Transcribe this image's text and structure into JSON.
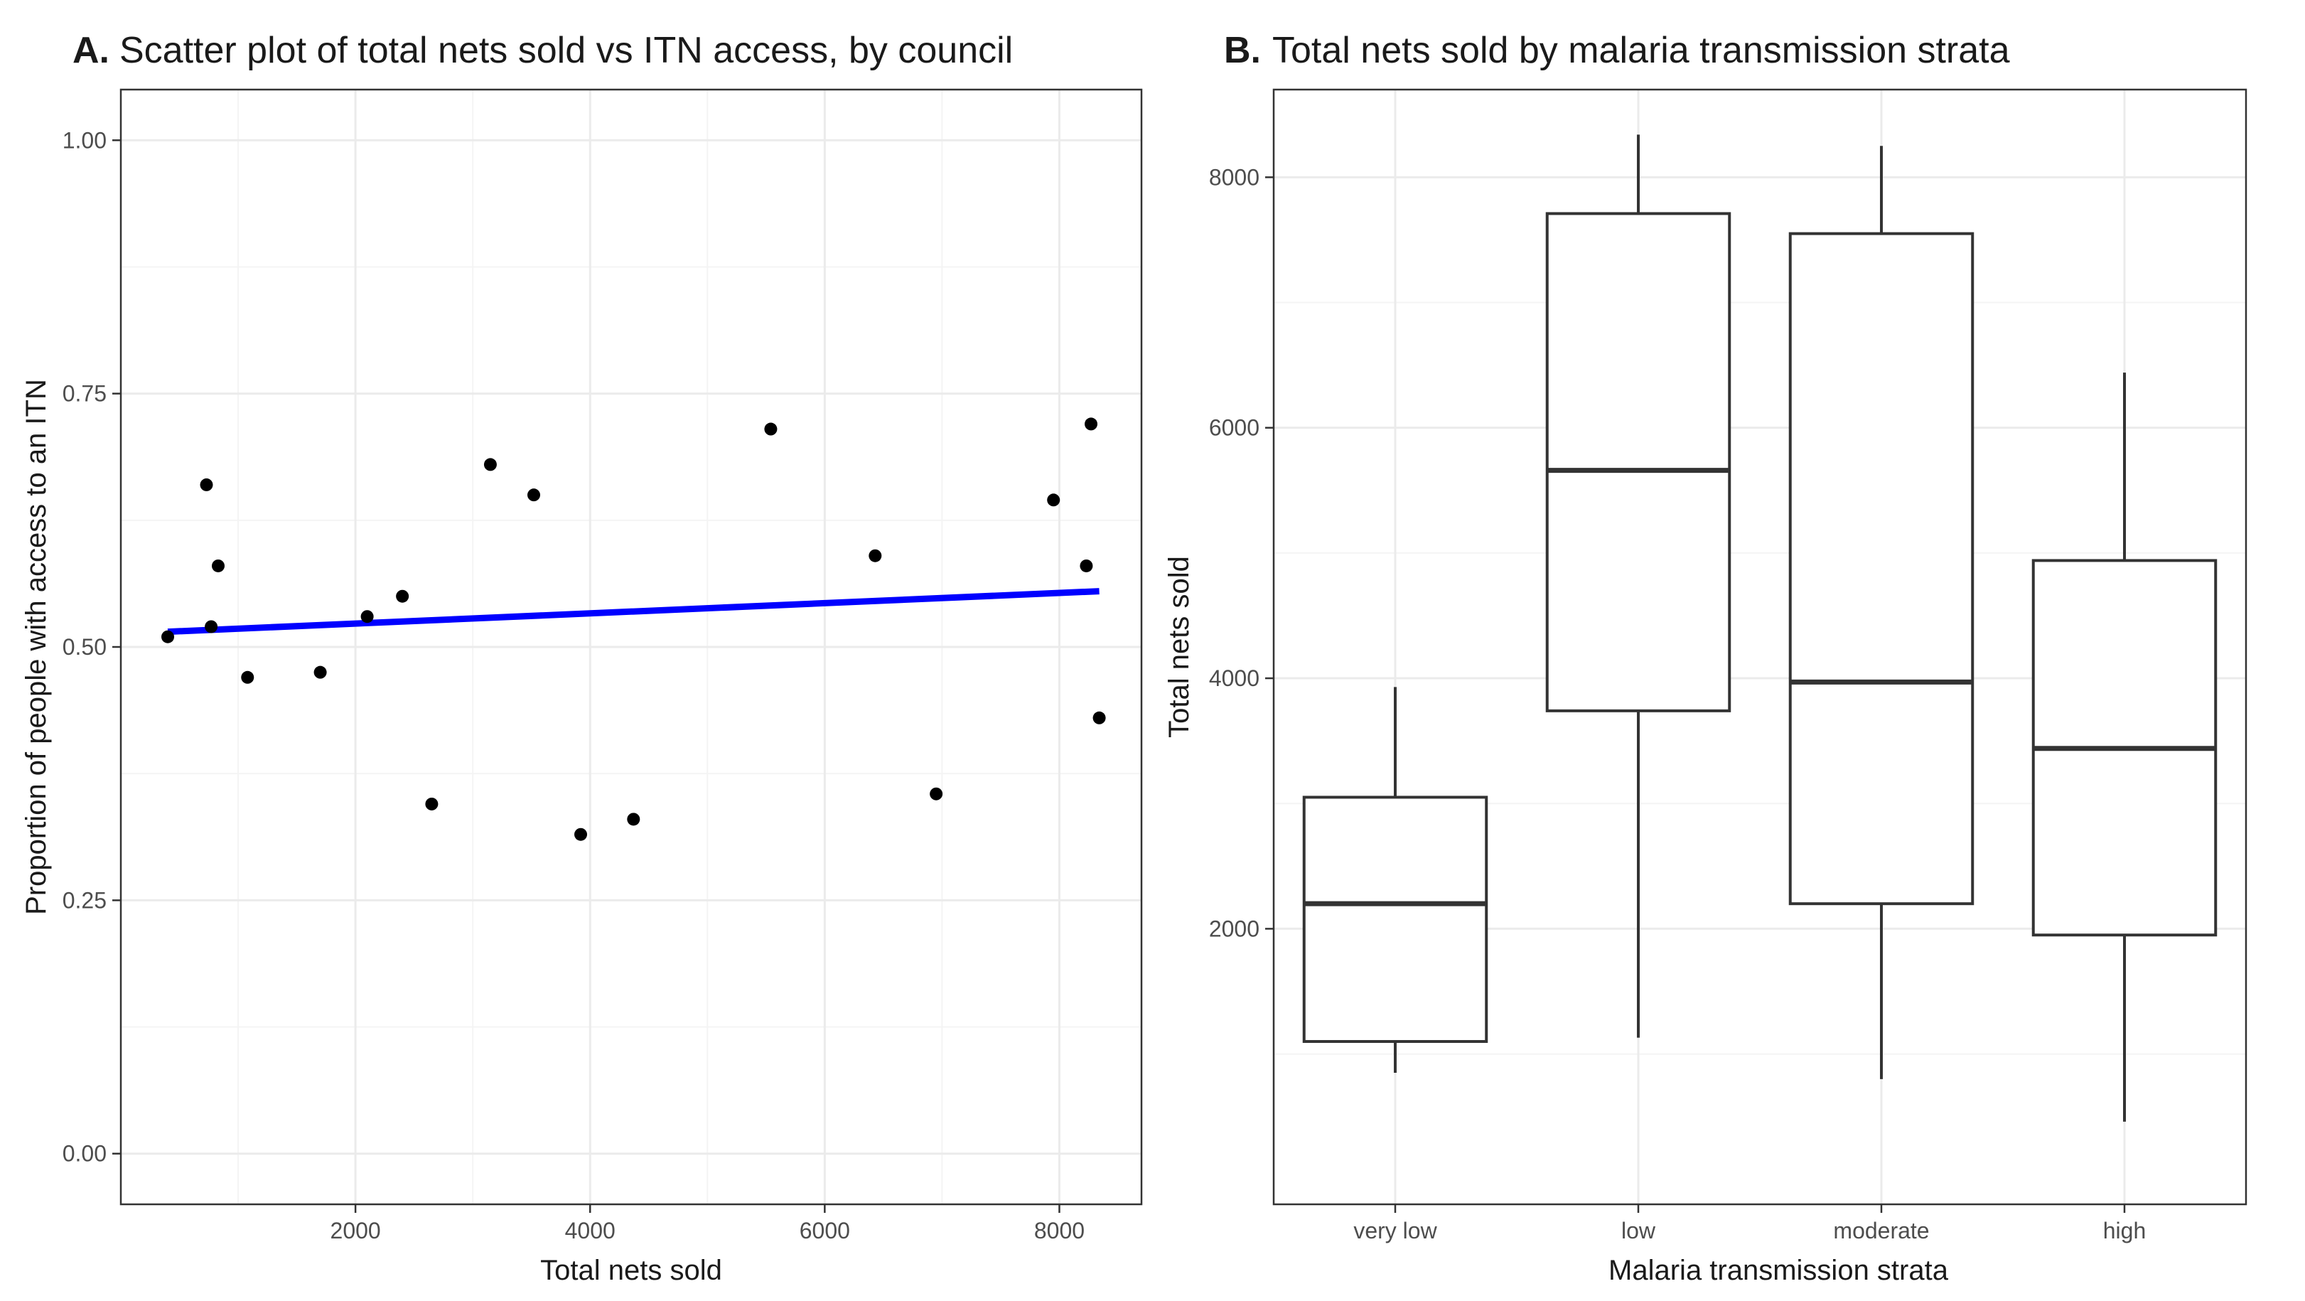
{
  "colors": {
    "point": "#000000",
    "trend": "#0000ff",
    "box": "#333333"
  },
  "chart_data": [
    {
      "type": "scatter",
      "panel_letter": "A.",
      "title": "Scatter plot of total nets sold vs ITN access, by council",
      "xlabel": "Total nets sold",
      "ylabel": "Proportion of people with access to an ITN",
      "xlim": [
        0,
        8700
      ],
      "ylim": [
        -0.05,
        1.05
      ],
      "xticks": [
        2000,
        4000,
        6000,
        8000
      ],
      "xtick_labels": [
        "2000",
        "4000",
        "6000",
        "8000"
      ],
      "yticks": [
        0,
        0.25,
        0.5,
        0.75,
        1.0
      ],
      "ytick_labels": [
        "0.00",
        "0.25",
        "0.50",
        "0.75",
        "1.00"
      ],
      "grid": true,
      "points": [
        {
          "x": 400,
          "y": 0.51
        },
        {
          "x": 730,
          "y": 0.66
        },
        {
          "x": 770,
          "y": 0.52
        },
        {
          "x": 830,
          "y": 0.58
        },
        {
          "x": 1080,
          "y": 0.47
        },
        {
          "x": 1700,
          "y": 0.475
        },
        {
          "x": 2100,
          "y": 0.53
        },
        {
          "x": 2400,
          "y": 0.55
        },
        {
          "x": 2650,
          "y": 0.345
        },
        {
          "x": 3150,
          "y": 0.68
        },
        {
          "x": 3520,
          "y": 0.65
        },
        {
          "x": 3920,
          "y": 0.315
        },
        {
          "x": 4370,
          "y": 0.33
        },
        {
          "x": 5540,
          "y": 0.715
        },
        {
          "x": 6430,
          "y": 0.59
        },
        {
          "x": 6950,
          "y": 0.355
        },
        {
          "x": 7950,
          "y": 0.645
        },
        {
          "x": 8230,
          "y": 0.58
        },
        {
          "x": 8270,
          "y": 0.72
        },
        {
          "x": 8340,
          "y": 0.43
        }
      ],
      "trend_line": {
        "x": [
          400,
          8340
        ],
        "y": [
          0.515,
          0.555
        ]
      }
    },
    {
      "type": "box",
      "panel_letter": "B.",
      "title": "Total nets sold by malaria transmission strata",
      "xlabel": "Malaria transmission strata",
      "ylabel": "Total nets sold",
      "ylim": [
        -200,
        8700
      ],
      "yticks": [
        2000,
        4000,
        6000,
        8000
      ],
      "ytick_labels": [
        "2000",
        "4000",
        "6000",
        "8000"
      ],
      "grid": true,
      "categories": [
        "very low",
        "low",
        "moderate",
        "high"
      ],
      "boxes": [
        {
          "category": "very low",
          "whisker_low": 850,
          "q1": 1100,
          "median": 2200,
          "q3": 3050,
          "whisker_high": 3930
        },
        {
          "category": "low",
          "whisker_low": 1130,
          "q1": 3740,
          "median": 5660,
          "q3": 7710,
          "whisker_high": 8340
        },
        {
          "category": "moderate",
          "whisker_low": 800,
          "q1": 2200,
          "median": 3970,
          "q3": 7550,
          "whisker_high": 8250
        },
        {
          "category": "high",
          "whisker_low": 460,
          "q1": 1950,
          "median": 3440,
          "q3": 4940,
          "whisker_high": 6440
        }
      ]
    }
  ]
}
